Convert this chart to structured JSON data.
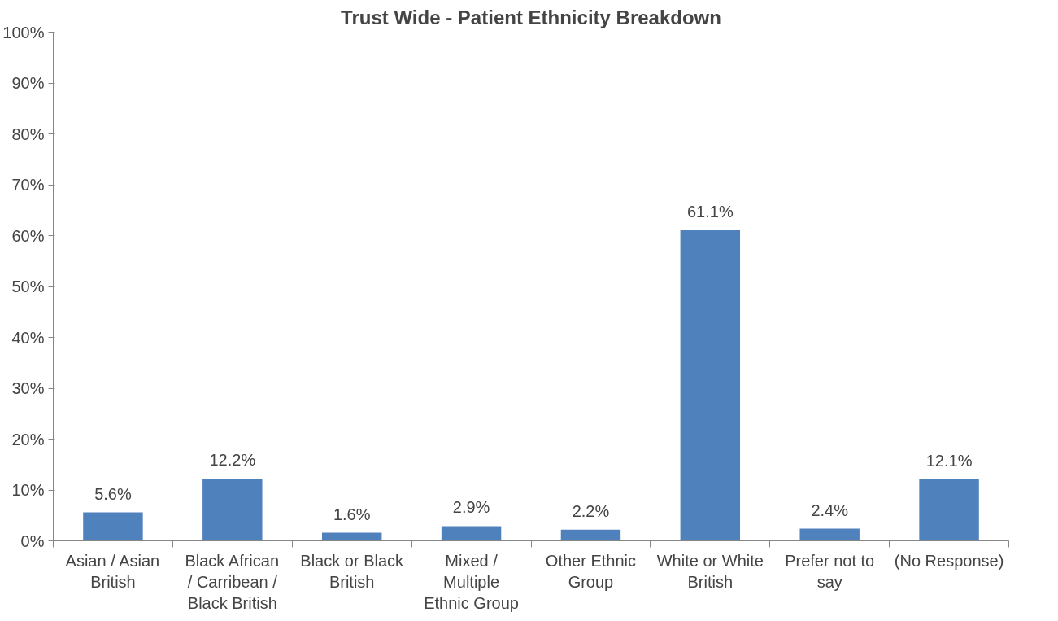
{
  "chart_data": {
    "type": "bar",
    "title": "Trust Wide - Patient Ethnicity Breakdown",
    "categories": [
      "Asian / Asian British",
      "Black African / Carribean / Black British",
      "Black or Black British",
      "Mixed / Multiple Ethnic Group",
      "Other Ethnic Group",
      "White or White British",
      "Prefer not to say",
      "(No Response)"
    ],
    "values": [
      5.6,
      12.2,
      1.6,
      2.9,
      2.2,
      61.1,
      2.4,
      12.1
    ],
    "value_labels": [
      "5.6%",
      "12.2%",
      "1.6%",
      "2.9%",
      "2.2%",
      "61.1%",
      "2.4%",
      "12.1%"
    ],
    "color": "#4f81bd",
    "ylim": [
      0,
      100
    ],
    "yticks": [
      {
        "value": 0,
        "label": "0%"
      },
      {
        "value": 10,
        "label": "10%"
      },
      {
        "value": 20,
        "label": "20%"
      },
      {
        "value": 30,
        "label": "30%"
      },
      {
        "value": 40,
        "label": "40%"
      },
      {
        "value": 50,
        "label": "50%"
      },
      {
        "value": 60,
        "label": "60%"
      },
      {
        "value": 70,
        "label": "70%"
      },
      {
        "value": 80,
        "label": "80%"
      },
      {
        "value": 90,
        "label": "90%"
      },
      {
        "value": 100,
        "label": "100%"
      }
    ],
    "grid": false
  }
}
